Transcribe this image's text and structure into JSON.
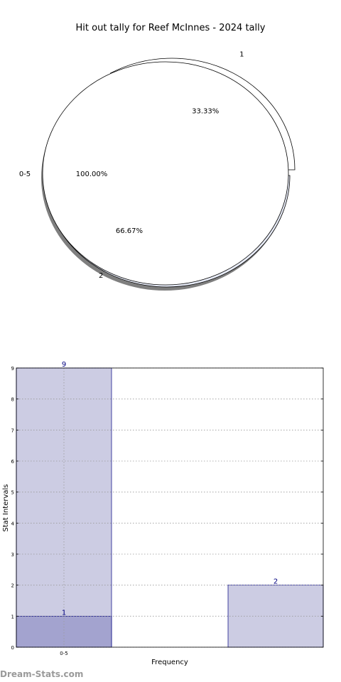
{
  "chart_data": [
    {
      "type": "pie",
      "title": "Hit out tally for Reef McInnes - 2024 tally",
      "series": [
        {
          "name": "0-5",
          "labels": [
            "0-5"
          ],
          "values": [
            100.0
          ],
          "value_labels": [
            "100.00%"
          ]
        },
        {
          "name": "",
          "labels": [
            "1",
            "2"
          ],
          "values": [
            33.33,
            66.67
          ],
          "value_labels": [
            "33.33%",
            "66.67%"
          ]
        }
      ],
      "colors": {
        "outer_slice_1": "#ffffff",
        "outer_slice_2": "#e8ecf8",
        "inner_slice": "#ffffff",
        "shadow": "#7f7f7f"
      }
    },
    {
      "type": "bar",
      "xlabel": "Frequency",
      "ylabel": "Stat Intervals",
      "ylim": [
        0,
        9
      ],
      "yticks": [
        "0",
        "1",
        "2",
        "3",
        "4",
        "5",
        "6",
        "7",
        "8",
        "9"
      ],
      "xticks": [
        "0-5"
      ],
      "grid": true,
      "series": [
        {
          "name": "",
          "bars": [
            {
              "label": "9",
              "value": 9,
              "slot": 0
            },
            {
              "label": "2",
              "value": 2,
              "slot": 2
            }
          ]
        },
        {
          "name": "",
          "bars": [
            {
              "label": "1",
              "value": 1,
              "slot": 0
            }
          ]
        }
      ],
      "colors": {
        "light_bar": "#cccce3",
        "dark_bar": "#a3a3cf",
        "bar_edge": "#00007f",
        "value_label": "#00007f"
      }
    }
  ],
  "watermark": "Dream-Stats.com"
}
